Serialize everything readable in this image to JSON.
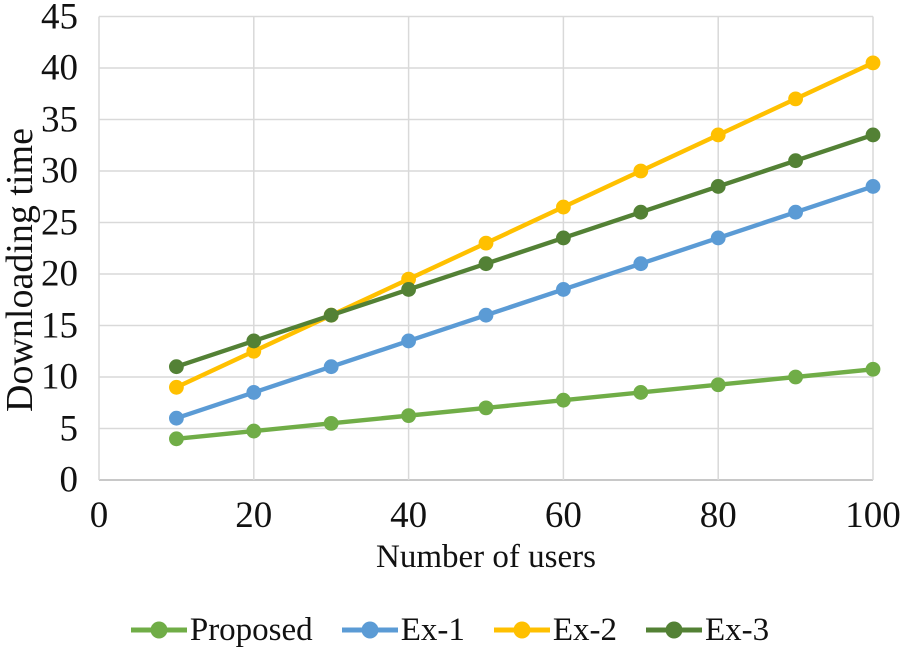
{
  "chart_data": {
    "type": "line",
    "title": "",
    "xlabel": "Number of users",
    "ylabel": "Downloading time",
    "x": [
      10,
      20,
      30,
      40,
      50,
      60,
      70,
      80,
      90,
      100
    ],
    "xlim": [
      0,
      100
    ],
    "ylim": [
      0,
      45
    ],
    "xticks": [
      0,
      20,
      40,
      60,
      80,
      100
    ],
    "yticks": [
      0,
      5,
      10,
      15,
      20,
      25,
      30,
      35,
      40,
      45
    ],
    "grid": true,
    "legend_position": "bottom",
    "series": [
      {
        "name": "Proposed",
        "color": "#70AD47",
        "values": [
          4,
          4.75,
          5.5,
          6.25,
          7,
          7.75,
          8.5,
          9.25,
          10,
          10.75
        ]
      },
      {
        "name": "Ex-1",
        "color": "#5B9BD5",
        "values": [
          6,
          8.5,
          11,
          13.5,
          16,
          18.5,
          21,
          23.5,
          26,
          28.5
        ]
      },
      {
        "name": "Ex-2",
        "color": "#FFC000",
        "values": [
          9,
          12.5,
          16,
          19.5,
          23,
          26.5,
          30,
          33.5,
          37,
          40.5
        ]
      },
      {
        "name": "Ex-3",
        "color": "#538135",
        "values": [
          11,
          13.5,
          16,
          18.5,
          21,
          23.5,
          26,
          28.5,
          31,
          33.5
        ]
      }
    ],
    "colors": {
      "gridline": "#D9D9D9",
      "axis_line": "#C8C8C8",
      "text": "#111111"
    }
  }
}
